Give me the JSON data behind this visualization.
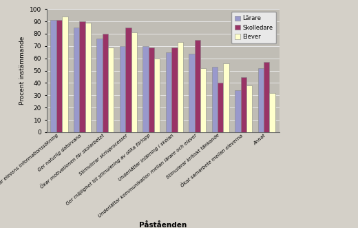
{
  "categories": [
    "Underlättar elevens informationssökning",
    "Ger naturlig datorvana",
    "Ökar motivationen för skolarbetet",
    "Stimulerar skrivprocesser",
    "Ger möjlighet till stimulering av olika förlopp",
    "Underlättar inlärning i skolan",
    "Underlättar kommunikation mellan lärare och elever",
    "Stimulerar kritiskt tänkande",
    "Ökat samarbete mellan eleverna",
    "Annat"
  ],
  "series": {
    "Lärare": [
      91,
      85,
      76,
      70,
      70,
      65,
      64,
      53,
      34,
      52
    ],
    "Skolledare": [
      91,
      90,
      80,
      85,
      69,
      69,
      75,
      40,
      45,
      57
    ],
    "Elever": [
      94,
      89,
      69,
      81,
      60,
      73,
      52,
      56,
      38,
      32
    ]
  },
  "colors": {
    "Lärare": "#9999cc",
    "Skolledare": "#993366",
    "Elever": "#ffffcc"
  },
  "xlabel": "Påståenden",
  "ylabel": "Procent instämmande",
  "ylim": [
    0,
    100
  ],
  "yticks": [
    0,
    10,
    20,
    30,
    40,
    50,
    60,
    70,
    80,
    90,
    100
  ],
  "legend_labels": [
    "Lärare",
    "Skolledare",
    "Elever"
  ],
  "background_color": "#d4d0c8",
  "plot_bg_color": "#c0bdb5",
  "grid_color": "#e8e8e8"
}
